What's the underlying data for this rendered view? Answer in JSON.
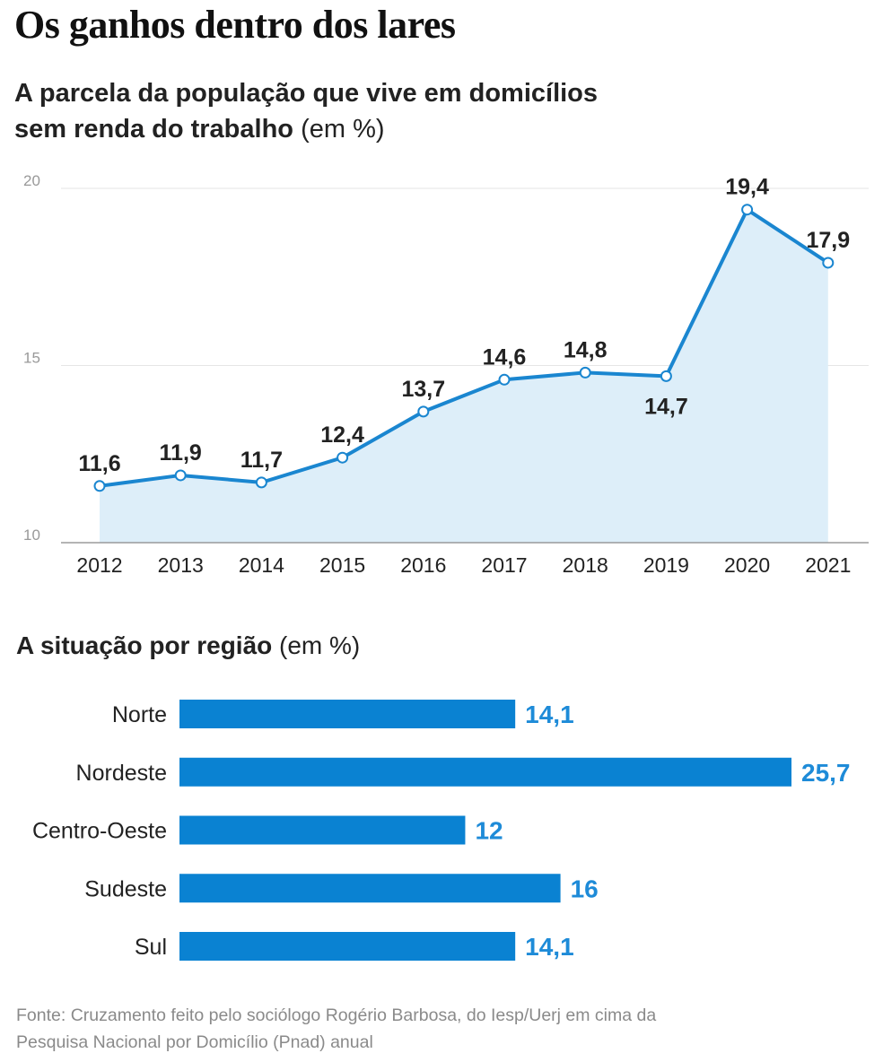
{
  "header": {
    "title": "Os ganhos dentro dos lares",
    "subtitle_line1": "A parcela da população que vive em domicílios",
    "subtitle_line2": "sem renda do trabalho",
    "subtitle_unit": "(em %)"
  },
  "regions_header": {
    "title": "A situação por região",
    "unit": "(em %)"
  },
  "source": {
    "line1": "Fonte: Cruzamento feito pelo sociólogo Rogério Barbosa, do Iesp/Uerj em cima da",
    "line2": "Pesquisa Nacional por Domicílio (Pnad) anual"
  },
  "colors": {
    "line": "#1A86D0",
    "area": "#DDEEF9",
    "bar": "#0A82D2",
    "bar_value": "#1E8BD8",
    "grid": "#E6E6E6"
  },
  "chart_data": [
    {
      "type": "line",
      "title": "A parcela da população que vive em domicílios sem renda do trabalho (em %)",
      "x": [
        "2012",
        "2013",
        "2014",
        "2015",
        "2016",
        "2017",
        "2018",
        "2019",
        "2020",
        "2021"
      ],
      "values": [
        11.6,
        11.9,
        11.7,
        12.4,
        13.7,
        14.6,
        14.8,
        14.7,
        19.4,
        17.9
      ],
      "labels": [
        "11,6",
        "11,9",
        "11,7",
        "12,4",
        "13,7",
        "14,6",
        "14,8",
        "14,7",
        "19,4",
        "17,9"
      ],
      "label_position": [
        "above",
        "above",
        "above",
        "above",
        "above",
        "above",
        "above",
        "below",
        "above",
        "above"
      ],
      "ylim": [
        10,
        20
      ],
      "yticks": [
        "10",
        "15",
        "20"
      ],
      "ytick_values": [
        10,
        15,
        20
      ],
      "grid": true,
      "fill": "area"
    },
    {
      "type": "bar",
      "orientation": "horizontal",
      "title": "A situação por região (em %)",
      "categories": [
        "Norte",
        "Nordeste",
        "Centro-Oeste",
        "Sudeste",
        "Sul"
      ],
      "values": [
        14.1,
        25.7,
        12,
        16,
        14.1
      ],
      "labels": [
        "14,1",
        "25,7",
        "12",
        "16",
        "14,1"
      ],
      "xlim": [
        0,
        25.7
      ]
    }
  ]
}
